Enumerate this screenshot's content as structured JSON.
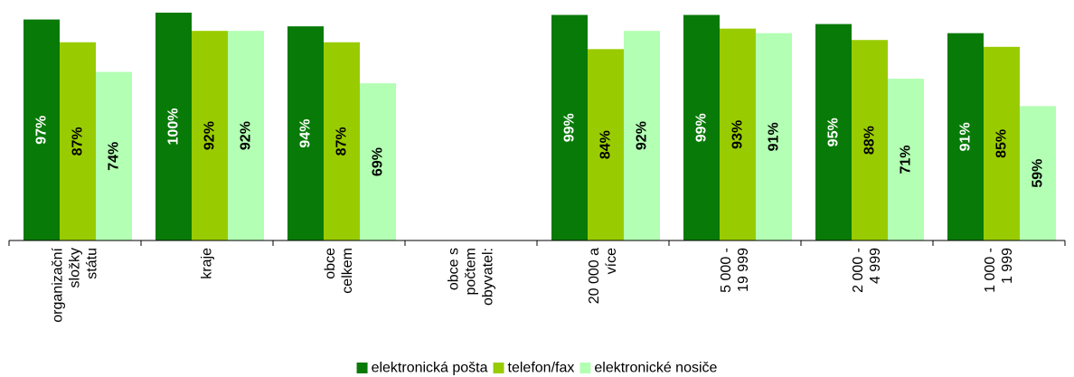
{
  "chart_data": {
    "type": "bar",
    "title": "",
    "xlabel": "",
    "ylabel": "",
    "ylim": [
      0,
      100
    ],
    "grid": false,
    "legend_position": "bottom",
    "value_format": "{v}%",
    "categories": [
      [
        "organizační",
        "složky",
        "státu"
      ],
      [
        "kraje"
      ],
      [
        "obce",
        "celkem"
      ],
      [
        "obce s",
        "počtem",
        "obyvatel:"
      ],
      [
        "20 000 a",
        "více"
      ],
      [
        "5 000 -",
        "19 999"
      ],
      [
        "2 000 -",
        "4 999"
      ],
      [
        "1 000 -",
        "1 999"
      ]
    ],
    "series": [
      {
        "name": "elektronická pošta",
        "color": "#087a08",
        "label_color": "#ffffff",
        "values": [
          97,
          100,
          94,
          null,
          99,
          99,
          95,
          91
        ]
      },
      {
        "name": "telefon/fax",
        "color": "#99cc00",
        "label_color": "#000000",
        "values": [
          87,
          92,
          87,
          null,
          84,
          93,
          88,
          85
        ]
      },
      {
        "name": "elektronické nosiče",
        "color": "#b3ffb3",
        "label_color": "#000000",
        "values": [
          74,
          92,
          69,
          null,
          92,
          91,
          71,
          59
        ]
      }
    ]
  }
}
